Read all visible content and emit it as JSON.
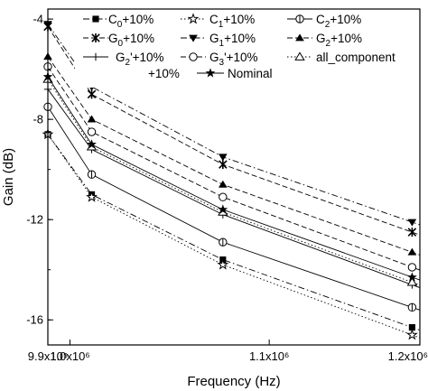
{
  "chart_data": {
    "type": "line",
    "xlabel": "Frequency (Hz)",
    "ylabel": "Gain (dB)",
    "x_scale": "reciprocal",
    "xlim": [
      990000,
      1190000
    ],
    "ylim": [
      -17,
      -3.6
    ],
    "x_ticks": [
      {
        "value": 990000,
        "label": "9.9x10⁵"
      },
      {
        "value": 1000000,
        "label": "1.0x10⁶"
      },
      {
        "value": 1100000,
        "label": "1.1x10⁶"
      },
      {
        "value": 1190000,
        "label": "1.2x10⁶"
      }
    ],
    "y_ticks": [
      {
        "value": -4,
        "label": "-4"
      },
      {
        "value": -8,
        "label": "-8"
      },
      {
        "value": -12,
        "label": "-12"
      },
      {
        "value": -16,
        "label": "-16"
      }
    ],
    "grid": false,
    "legend_position": "top",
    "x": [
      990000,
      1010000,
      1075000,
      1185000
    ],
    "series": [
      {
        "name": "C0+10%",
        "name_sub": "0",
        "marker": "filled-square",
        "dash": "dash-dot",
        "values": [
          -8.6,
          -11.0,
          -13.6,
          -16.3
        ]
      },
      {
        "name": "C1+10%",
        "name_sub": "1",
        "marker": "open-star",
        "dash": "dot",
        "values": [
          -8.6,
          -11.1,
          -13.8,
          -16.6
        ]
      },
      {
        "name": "C2+10%",
        "name_sub": "2",
        "marker": "circle-bar",
        "dash": "solid",
        "values": [
          -7.5,
          -10.2,
          -12.9,
          -15.5
        ]
      },
      {
        "name": "G0+10%",
        "name_sub": "0",
        "marker": "x-cross",
        "dash": "dash",
        "values": [
          -4.3,
          -7.0,
          -9.8,
          -12.5
        ]
      },
      {
        "name": "G1+10%",
        "name_sub": "1",
        "marker": "filled-triangle-down",
        "dash": "dash-dot",
        "values": [
          -4.2,
          -6.7,
          -9.5,
          -12.1
        ]
      },
      {
        "name": "G2+10%",
        "name_sub": "2",
        "marker": "filled-triangle-up",
        "dash": "dash",
        "values": [
          -5.5,
          -8.0,
          -10.6,
          -13.3
        ]
      },
      {
        "name": "G2'+10%",
        "name_sub": "2",
        "marker": "plus",
        "dash": "solid",
        "values": [
          -6.8,
          -9.2,
          -11.8,
          -14.6
        ]
      },
      {
        "name": "G3'+10%",
        "name_sub": "3",
        "marker": "open-circle",
        "dash": "dash",
        "values": [
          -5.9,
          -8.5,
          -11.1,
          -13.9
        ]
      },
      {
        "name": "all_component +10%",
        "marker": "open-triangle-up",
        "dash": "dot",
        "values": [
          -6.4,
          -9.1,
          -11.7,
          -14.5
        ]
      },
      {
        "name": "Nominal",
        "marker": "filled-star",
        "dash": "solid",
        "values": [
          -6.3,
          -9.0,
          -11.6,
          -14.3
        ]
      }
    ]
  },
  "legend": {
    "items": [
      {
        "prefix": "C",
        "sub": "0",
        "suffix": "+10%"
      },
      {
        "prefix": "C",
        "sub": "1",
        "suffix": "+10%"
      },
      {
        "prefix": "C",
        "sub": "2",
        "suffix": "+10%"
      },
      {
        "prefix": "G",
        "sub": "0",
        "suffix": "+10%"
      },
      {
        "prefix": "G",
        "sub": "1",
        "suffix": "+10%"
      },
      {
        "prefix": "G",
        "sub": "2",
        "suffix": "+10%"
      },
      {
        "prefix": "G",
        "sub": "2",
        "suffix": "'+10%"
      },
      {
        "prefix": "G",
        "sub": "3",
        "suffix": "'+10%"
      },
      {
        "prefix": "all_component",
        "sub": "",
        "suffix": ""
      },
      {
        "prefix": "+10%",
        "sub": "",
        "suffix": ""
      },
      {
        "prefix": "Nominal",
        "sub": "",
        "suffix": ""
      }
    ]
  }
}
